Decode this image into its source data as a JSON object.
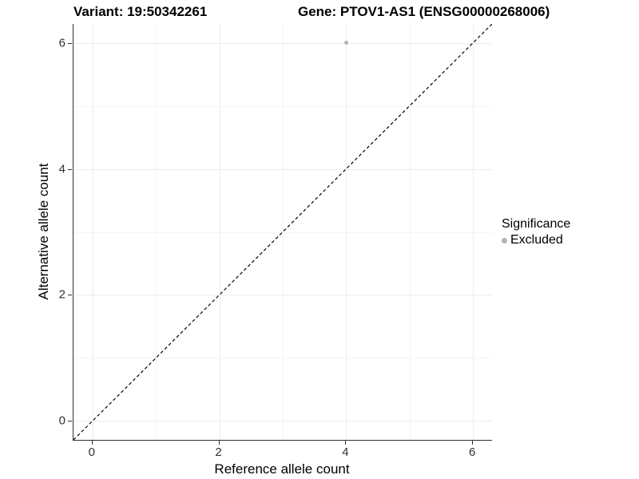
{
  "header": {
    "variant_title": "Variant: 19:50342261",
    "gene_title": "Gene: PTOV1-AS1 (ENSG00000268006)"
  },
  "chart_data": {
    "type": "scatter",
    "xlabel": "Reference allele count",
    "ylabel": "Alternative allele count",
    "xlim": [
      -0.3,
      6.3
    ],
    "ylim": [
      -0.3,
      6.3
    ],
    "x_ticks": [
      0,
      2,
      4,
      6
    ],
    "y_ticks": [
      0,
      2,
      4,
      6
    ],
    "x_minor_ticks": [
      1,
      3,
      5
    ],
    "y_minor_ticks": [
      1,
      3,
      5
    ],
    "grid": true,
    "identity_line": {
      "slope": 1,
      "intercept": 0,
      "style": "dashed",
      "color": "#000000"
    },
    "series": [
      {
        "name": "Excluded",
        "color": "#b3b3b3",
        "point_radius": 2.6,
        "points": [
          {
            "x": 4,
            "y": 6
          }
        ]
      }
    ],
    "legend": {
      "title": "Significance",
      "position": "right",
      "items": [
        {
          "label": "Excluded",
          "color": "#b3b3b3"
        }
      ]
    },
    "colors": {
      "grid_major": "#ebebeb",
      "grid_minor": "#f5f5f5",
      "axis_line": "#2f2f2f",
      "point": "#b3b3b3"
    }
  }
}
